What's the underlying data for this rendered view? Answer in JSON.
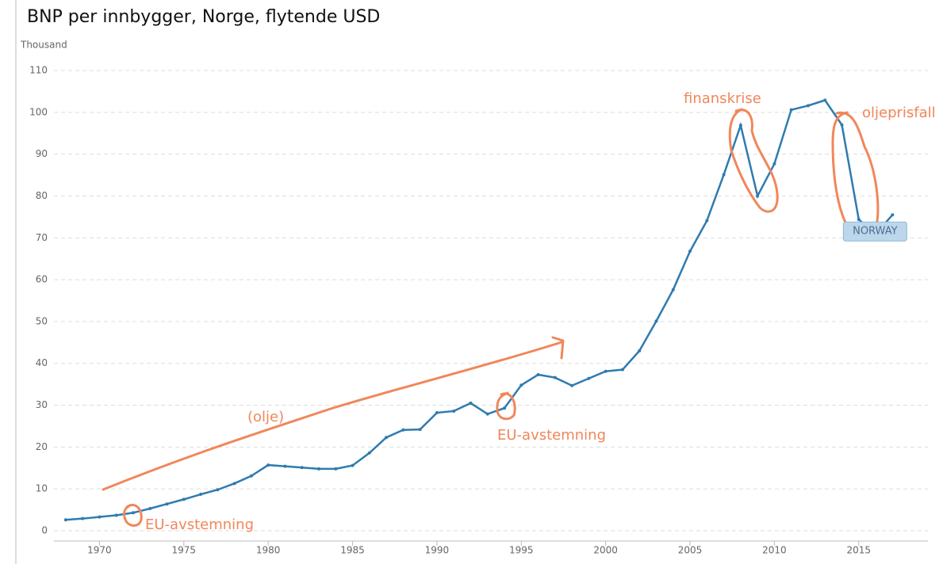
{
  "chart_data": {
    "type": "line",
    "title": "BNP per innbygger, Norge, flytende USD",
    "y_unit": "Thousand",
    "x": [
      1968,
      1969,
      1970,
      1971,
      1972,
      1973,
      1974,
      1975,
      1976,
      1977,
      1978,
      1979,
      1980,
      1981,
      1982,
      1983,
      1984,
      1985,
      1986,
      1987,
      1988,
      1989,
      1990,
      1991,
      1992,
      1993,
      1994,
      1995,
      1996,
      1997,
      1998,
      1999,
      2000,
      2001,
      2002,
      2003,
      2004,
      2005,
      2006,
      2007,
      2008,
      2009,
      2010,
      2011,
      2012,
      2013,
      2014,
      2015,
      2016,
      2017
    ],
    "series": [
      {
        "name": "NORWAY",
        "color": "#2f7bb0",
        "values": [
          2.6,
          2.9,
          3.3,
          3.7,
          4.3,
          5.3,
          6.4,
          7.5,
          8.7,
          9.8,
          11.3,
          13.1,
          15.7,
          15.4,
          15.1,
          14.8,
          14.8,
          15.6,
          18.6,
          22.3,
          24.1,
          24.2,
          28.2,
          28.6,
          30.5,
          27.9,
          29.3,
          34.8,
          37.3,
          36.6,
          34.7,
          36.4,
          38.1,
          38.5,
          43.0,
          50.1,
          57.6,
          66.8,
          74.1,
          85.1,
          96.9,
          80.0,
          87.7,
          100.6,
          101.6,
          102.9,
          97.0,
          74.4,
          70.9,
          75.5
        ]
      }
    ],
    "xlim": [
      1967.3,
      2019.1
    ],
    "xticks": [
      1970,
      1975,
      1980,
      1985,
      1990,
      1995,
      2000,
      2005,
      2010,
      2015
    ],
    "ylim": [
      0,
      110
    ],
    "yticks": [
      0,
      10,
      20,
      30,
      40,
      50,
      60,
      70,
      80,
      90,
      100,
      110
    ],
    "grid": true,
    "annotations": [
      "finanskrise",
      "oljeprisfall",
      "(olje)",
      "EU-avstemning",
      "EU-avstemning"
    ]
  }
}
